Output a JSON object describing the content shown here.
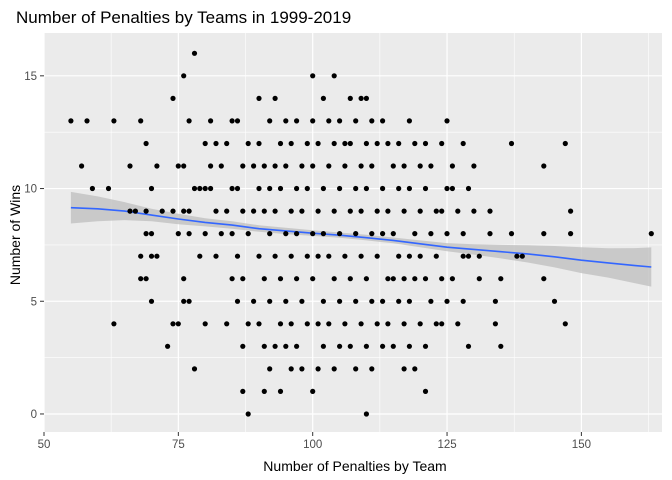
{
  "chart_data": {
    "type": "scatter",
    "title": "Number of Penalties by Teams in 1999-2019",
    "xlabel": "Number of Penalties by Team",
    "ylabel": "Number of Wins",
    "xlim": [
      50,
      165
    ],
    "ylim": [
      -0.8,
      16.9
    ],
    "x_ticks": [
      50,
      75,
      100,
      125,
      150
    ],
    "y_ticks": [
      0,
      5,
      10,
      15
    ],
    "x_tick_labels": [
      "50",
      "75",
      "100",
      "125",
      "150"
    ],
    "y_tick_labels": [
      "0",
      "5",
      "10",
      "15"
    ],
    "grid": true,
    "legend": "none",
    "colors": {
      "panel": "#ebebeb",
      "grid": "#ffffff",
      "points": "#000000",
      "trend": "#3366ff",
      "band": "#c0c0c0"
    },
    "smooth": {
      "method": "loess",
      "x": [
        55,
        60,
        65,
        70,
        75,
        80,
        85,
        90,
        95,
        100,
        105,
        110,
        115,
        120,
        125,
        130,
        135,
        140,
        145,
        150,
        155,
        160,
        163
      ],
      "y": [
        9.15,
        9.1,
        9.0,
        8.82,
        8.65,
        8.5,
        8.38,
        8.22,
        8.12,
        8.02,
        7.93,
        7.82,
        7.7,
        7.55,
        7.4,
        7.3,
        7.2,
        7.1,
        6.97,
        6.82,
        6.7,
        6.58,
        6.52
      ],
      "ci_low": [
        8.45,
        8.55,
        8.6,
        8.55,
        8.42,
        8.32,
        8.22,
        8.08,
        7.98,
        7.9,
        7.82,
        7.7,
        7.57,
        7.4,
        7.22,
        7.07,
        6.9,
        6.72,
        6.5,
        6.25,
        6.05,
        5.8,
        5.65
      ],
      "ci_high": [
        9.85,
        9.65,
        9.4,
        9.1,
        8.88,
        8.68,
        8.55,
        8.37,
        8.26,
        8.15,
        8.05,
        7.95,
        7.83,
        7.7,
        7.58,
        7.53,
        7.5,
        7.48,
        7.45,
        7.4,
        7.35,
        7.36,
        7.39
      ]
    },
    "points": [
      [
        55,
        13
      ],
      [
        57,
        11
      ],
      [
        58,
        13
      ],
      [
        59,
        10
      ],
      [
        62,
        10
      ],
      [
        63,
        4
      ],
      [
        63,
        13
      ],
      [
        66,
        11
      ],
      [
        66,
        9
      ],
      [
        67,
        9
      ],
      [
        68,
        13
      ],
      [
        68,
        7
      ],
      [
        68,
        6
      ],
      [
        69,
        12
      ],
      [
        69,
        9
      ],
      [
        69,
        8
      ],
      [
        69,
        6
      ],
      [
        70,
        10
      ],
      [
        70,
        8
      ],
      [
        70,
        7
      ],
      [
        70,
        5
      ],
      [
        71,
        11
      ],
      [
        71,
        7
      ],
      [
        72,
        9
      ],
      [
        73,
        3
      ],
      [
        74,
        14
      ],
      [
        74,
        9
      ],
      [
        74,
        4
      ],
      [
        75,
        11
      ],
      [
        75,
        8
      ],
      [
        75,
        4
      ],
      [
        76,
        15
      ],
      [
        76,
        11
      ],
      [
        76,
        9
      ],
      [
        76,
        6
      ],
      [
        76,
        5
      ],
      [
        77,
        13
      ],
      [
        77,
        9
      ],
      [
        77,
        8
      ],
      [
        77,
        5
      ],
      [
        78,
        16
      ],
      [
        78,
        10
      ],
      [
        78,
        2
      ],
      [
        79,
        10
      ],
      [
        79,
        7
      ],
      [
        80,
        12
      ],
      [
        80,
        10
      ],
      [
        80,
        8
      ],
      [
        80,
        4
      ],
      [
        81,
        13
      ],
      [
        81,
        11
      ],
      [
        81,
        10
      ],
      [
        82,
        12
      ],
      [
        82,
        9
      ],
      [
        82,
        7
      ],
      [
        83,
        11
      ],
      [
        83,
        8
      ],
      [
        84,
        12
      ],
      [
        84,
        9
      ],
      [
        84,
        4
      ],
      [
        85,
        13
      ],
      [
        85,
        10
      ],
      [
        85,
        8
      ],
      [
        85,
        6
      ],
      [
        86,
        13
      ],
      [
        86,
        10
      ],
      [
        86,
        7
      ],
      [
        86,
        5
      ],
      [
        87,
        11
      ],
      [
        87,
        9
      ],
      [
        87,
        6
      ],
      [
        87,
        3
      ],
      [
        87,
        1
      ],
      [
        88,
        12
      ],
      [
        88,
        8
      ],
      [
        88,
        4
      ],
      [
        88,
        0
      ],
      [
        89,
        11
      ],
      [
        89,
        9
      ],
      [
        89,
        5
      ],
      [
        90,
        14
      ],
      [
        90,
        12
      ],
      [
        90,
        10
      ],
      [
        90,
        7
      ],
      [
        90,
        4
      ],
      [
        91,
        11
      ],
      [
        91,
        9
      ],
      [
        91,
        6
      ],
      [
        91,
        3
      ],
      [
        91,
        1
      ],
      [
        92,
        13
      ],
      [
        92,
        10
      ],
      [
        92,
        8
      ],
      [
        92,
        5
      ],
      [
        92,
        2
      ],
      [
        93,
        14
      ],
      [
        93,
        11
      ],
      [
        93,
        9
      ],
      [
        93,
        7
      ],
      [
        93,
        3
      ],
      [
        94,
        12
      ],
      [
        94,
        10
      ],
      [
        94,
        6
      ],
      [
        94,
        4
      ],
      [
        94,
        1
      ],
      [
        95,
        13
      ],
      [
        95,
        11
      ],
      [
        95,
        8
      ],
      [
        95,
        5
      ],
      [
        95,
        3
      ],
      [
        96,
        12
      ],
      [
        96,
        9
      ],
      [
        96,
        7
      ],
      [
        96,
        4
      ],
      [
        96,
        2
      ],
      [
        97,
        13
      ],
      [
        97,
        10
      ],
      [
        97,
        8
      ],
      [
        97,
        6
      ],
      [
        97,
        3
      ],
      [
        98,
        11
      ],
      [
        98,
        9
      ],
      [
        98,
        5
      ],
      [
        98,
        2
      ],
      [
        99,
        12
      ],
      [
        99,
        10
      ],
      [
        99,
        7
      ],
      [
        99,
        4
      ],
      [
        100,
        15
      ],
      [
        100,
        13
      ],
      [
        100,
        11
      ],
      [
        100,
        8
      ],
      [
        100,
        6
      ],
      [
        100,
        1
      ],
      [
        101,
        12
      ],
      [
        101,
        9
      ],
      [
        101,
        7
      ],
      [
        101,
        4
      ],
      [
        101,
        2
      ],
      [
        102,
        14
      ],
      [
        102,
        10
      ],
      [
        102,
        8
      ],
      [
        102,
        5
      ],
      [
        102,
        3
      ],
      [
        103,
        13
      ],
      [
        103,
        11
      ],
      [
        103,
        7
      ],
      [
        103,
        4
      ],
      [
        104,
        15
      ],
      [
        104,
        12
      ],
      [
        104,
        9
      ],
      [
        104,
        6
      ],
      [
        104,
        2
      ],
      [
        105,
        13
      ],
      [
        105,
        10
      ],
      [
        105,
        8
      ],
      [
        105,
        5
      ],
      [
        105,
        3
      ],
      [
        106,
        12
      ],
      [
        106,
        11
      ],
      [
        106,
        7
      ],
      [
        106,
        4
      ],
      [
        107,
        14
      ],
      [
        107,
        12
      ],
      [
        107,
        9
      ],
      [
        107,
        6
      ],
      [
        107,
        3
      ],
      [
        108,
        13
      ],
      [
        108,
        10
      ],
      [
        108,
        8
      ],
      [
        108,
        5
      ],
      [
        108,
        2
      ],
      [
        109,
        14
      ],
      [
        109,
        11
      ],
      [
        109,
        9
      ],
      [
        109,
        7
      ],
      [
        109,
        4
      ],
      [
        110,
        14
      ],
      [
        110,
        12
      ],
      [
        110,
        10
      ],
      [
        110,
        6
      ],
      [
        110,
        3
      ],
      [
        110,
        0
      ],
      [
        111,
        13
      ],
      [
        111,
        11
      ],
      [
        111,
        8
      ],
      [
        111,
        5
      ],
      [
        111,
        2
      ],
      [
        112,
        12
      ],
      [
        112,
        9
      ],
      [
        112,
        7
      ],
      [
        112,
        4
      ],
      [
        113,
        13
      ],
      [
        113,
        10
      ],
      [
        113,
        8
      ],
      [
        113,
        5
      ],
      [
        113,
        3
      ],
      [
        114,
        12
      ],
      [
        114,
        9
      ],
      [
        114,
        6
      ],
      [
        114,
        4
      ],
      [
        115,
        11
      ],
      [
        115,
        8
      ],
      [
        115,
        6
      ],
      [
        115,
        3
      ],
      [
        116,
        12
      ],
      [
        116,
        10
      ],
      [
        116,
        7
      ],
      [
        116,
        5
      ],
      [
        117,
        11
      ],
      [
        117,
        9
      ],
      [
        117,
        6
      ],
      [
        117,
        4
      ],
      [
        117,
        2
      ],
      [
        118,
        13
      ],
      [
        118,
        10
      ],
      [
        118,
        7
      ],
      [
        118,
        5
      ],
      [
        118,
        3
      ],
      [
        119,
        12
      ],
      [
        119,
        8
      ],
      [
        119,
        6
      ],
      [
        119,
        2
      ],
      [
        120,
        11
      ],
      [
        120,
        9
      ],
      [
        120,
        7
      ],
      [
        120,
        4
      ],
      [
        121,
        12
      ],
      [
        121,
        10
      ],
      [
        121,
        6
      ],
      [
        121,
        3
      ],
      [
        121,
        1
      ],
      [
        122,
        11
      ],
      [
        122,
        8
      ],
      [
        122,
        5
      ],
      [
        123,
        9
      ],
      [
        123,
        7
      ],
      [
        123,
        4
      ],
      [
        124,
        12
      ],
      [
        124,
        9
      ],
      [
        124,
        6
      ],
      [
        124,
        4
      ],
      [
        125,
        13
      ],
      [
        125,
        10
      ],
      [
        125,
        8
      ],
      [
        125,
        5
      ],
      [
        126,
        11
      ],
      [
        126,
        10
      ],
      [
        126,
        6
      ],
      [
        127,
        9
      ],
      [
        127,
        4
      ],
      [
        128,
        12
      ],
      [
        128,
        8
      ],
      [
        128,
        5
      ],
      [
        128,
        7
      ],
      [
        129,
        10
      ],
      [
        129,
        7
      ],
      [
        129,
        3
      ],
      [
        130,
        11
      ],
      [
        130,
        9
      ],
      [
        131,
        7
      ],
      [
        131,
        6
      ],
      [
        133,
        9
      ],
      [
        133,
        8
      ],
      [
        134,
        5
      ],
      [
        134,
        4
      ],
      [
        135,
        6
      ],
      [
        135,
        3
      ],
      [
        137,
        12
      ],
      [
        137,
        8
      ],
      [
        138,
        7
      ],
      [
        139,
        7
      ],
      [
        143,
        11
      ],
      [
        143,
        8
      ],
      [
        143,
        6
      ],
      [
        145,
        5
      ],
      [
        147,
        12
      ],
      [
        147,
        4
      ],
      [
        148,
        9
      ],
      [
        148,
        8
      ],
      [
        163,
        8
      ]
    ]
  }
}
